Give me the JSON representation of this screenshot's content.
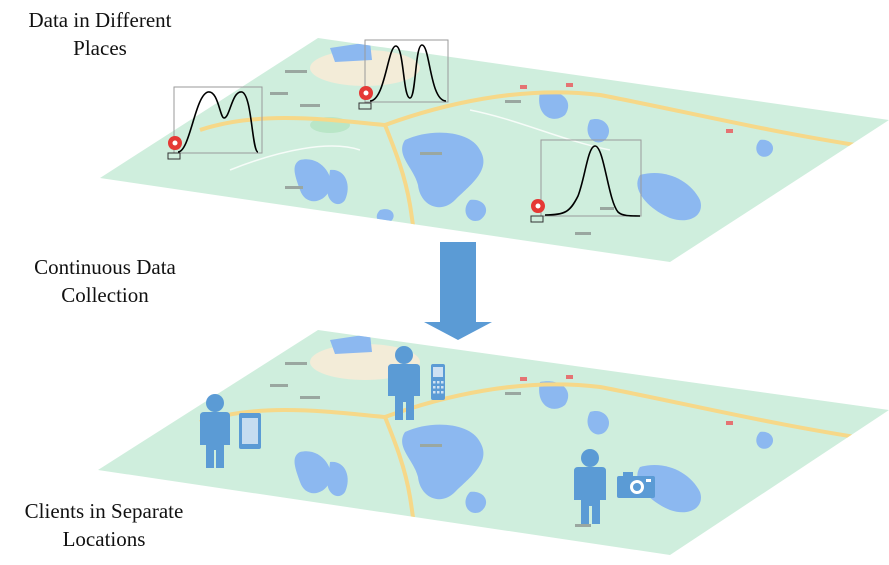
{
  "labels": {
    "top": [
      "Data in Different",
      "Places"
    ],
    "middle": [
      "Continuous Data",
      "Collection"
    ],
    "bottom": [
      "Clients in Separate",
      "Locations"
    ]
  },
  "colors": {
    "map_land": "#cfeedd",
    "map_water": "#8cb8f0",
    "map_road": "#f6d889",
    "pin": "#e53935",
    "person": "#5b9bd5",
    "arrow": "#5b9bd5",
    "curve": "#000000",
    "box": "#9a9a9a"
  },
  "icons": {
    "location_pin": "location-pin-icon",
    "person": "person-icon",
    "tablet": "tablet-icon",
    "phone": "phone-icon",
    "camera": "camera-icon",
    "arrow": "arrow-down-icon"
  }
}
